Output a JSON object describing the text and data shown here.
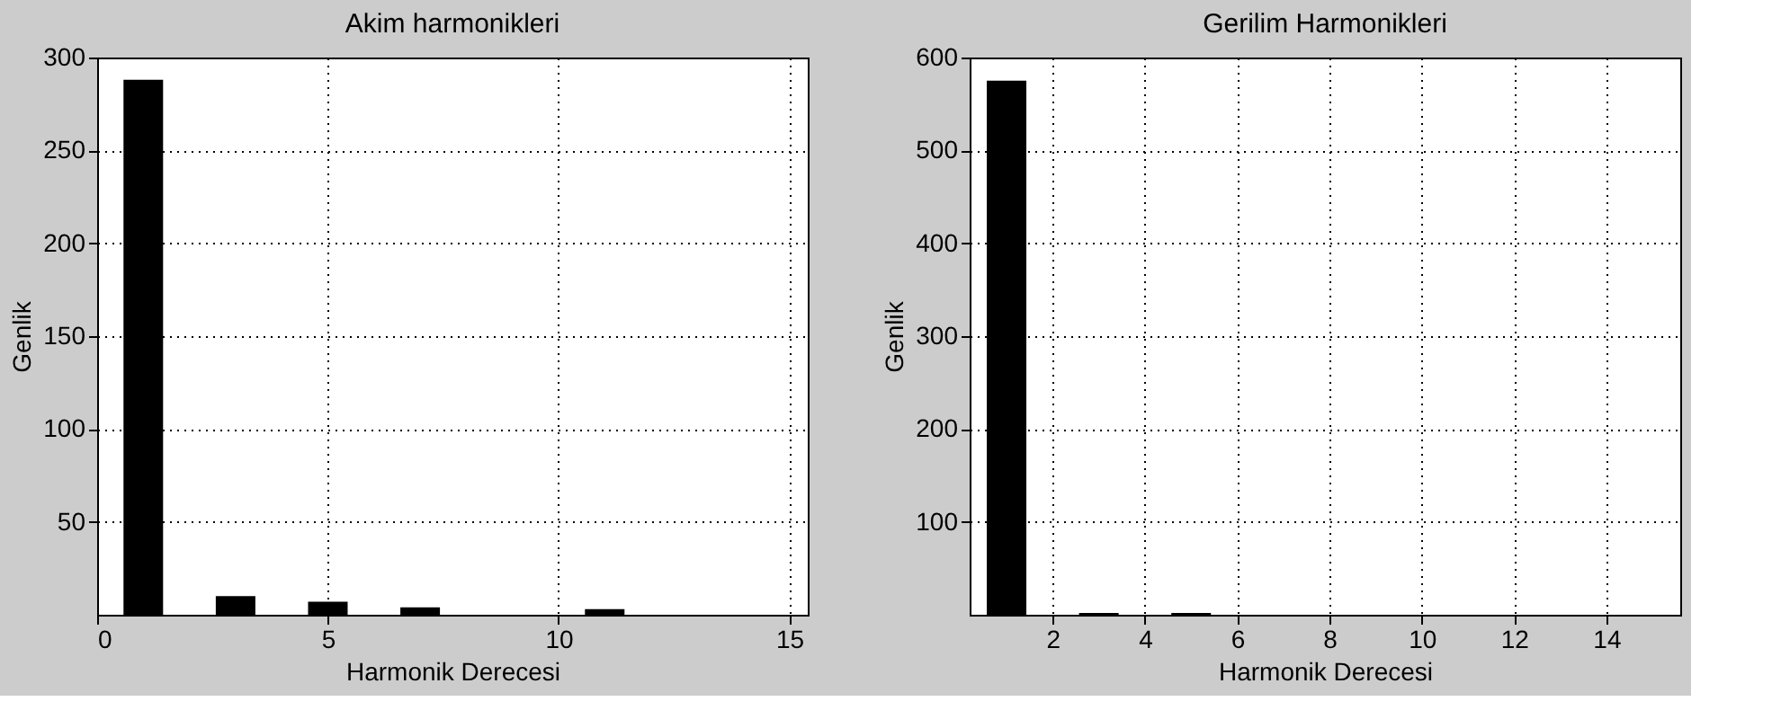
{
  "chart_data": [
    {
      "type": "bar",
      "title": "Akim harmonikleri",
      "xlabel": "Harmonik Derecesi",
      "ylabel": "Genlik",
      "x": [
        1,
        3,
        5,
        7,
        11
      ],
      "values": [
        288,
        10,
        7,
        4,
        3
      ],
      "color": "#000000",
      "xlim": [
        0,
        15.4
      ],
      "xticks": [
        0,
        5,
        10,
        15
      ],
      "ylim": [
        0,
        300
      ],
      "yticks": [
        50,
        100,
        150,
        200,
        250,
        300
      ],
      "grid": true
    },
    {
      "type": "bar",
      "title": "Gerilim Harmonikleri",
      "xlabel": "Harmonik Derecesi",
      "ylabel": "Genlik",
      "x": [
        1,
        3,
        5
      ],
      "values": [
        575,
        2,
        2
      ],
      "color": "#000000",
      "xlim": [
        0.2,
        15.6
      ],
      "xticks": [
        2,
        4,
        6,
        8,
        10,
        12,
        14
      ],
      "ylim": [
        0,
        600
      ],
      "yticks": [
        100,
        200,
        300,
        400,
        500,
        600
      ],
      "grid": true
    }
  ]
}
